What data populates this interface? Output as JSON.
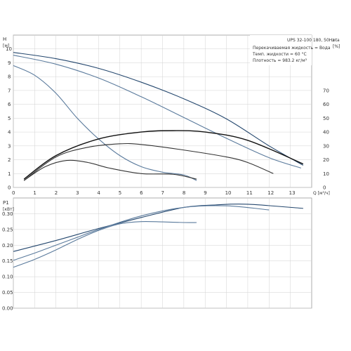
{
  "header": {
    "model": "UPS 32-100  180, 50Hz",
    "eta_label": "eta",
    "eta_unit": "[%]",
    "h_label": "H",
    "h_unit": "[м]",
    "p_label": "P1",
    "p_unit": "[кВт]",
    "q_label": "Q [м³/ч]"
  },
  "info": {
    "line1": "Перекачиваемая жидкость = Вода",
    "line2": "Темп. жидкости = 60 °C",
    "line3": "Плотность = 983.2 кг/м³"
  },
  "chart_data": [
    {
      "type": "line",
      "xlabel": "Q [м³/ч]",
      "ylabel": "H [м]",
      "ylabel_right": "eta [%]",
      "xlim": [
        0,
        14
      ],
      "ylim": [
        0,
        11
      ],
      "ylim_right": [
        0,
        110
      ],
      "x_ticks": [
        0,
        1,
        2,
        3,
        4,
        5,
        6,
        7,
        8,
        9,
        10,
        11,
        12,
        13
      ],
      "y_ticks": [
        0,
        1,
        2,
        3,
        4,
        5,
        6,
        7,
        8,
        9,
        10
      ],
      "y_ticks_right": [
        0,
        10,
        20,
        30,
        40,
        50,
        60,
        70
      ],
      "grid": true,
      "series": [
        {
          "axis": "H",
          "color": "#24476e",
          "x": [
            0,
            2,
            4,
            6,
            8,
            10,
            12,
            13.6
          ],
          "y": [
            9.75,
            9.3,
            8.6,
            7.6,
            6.4,
            4.95,
            3.0,
            1.6
          ]
        },
        {
          "axis": "H",
          "color": "#5a7a9c",
          "x": [
            0,
            2,
            4,
            6,
            8,
            10,
            12,
            13.5
          ],
          "y": [
            9.55,
            8.9,
            7.9,
            6.55,
            5.05,
            3.55,
            2.15,
            1.4
          ]
        },
        {
          "axis": "H",
          "color": "#5a7a9c",
          "x": [
            0,
            1,
            2,
            3,
            4,
            5,
            6,
            7,
            8,
            8.6
          ],
          "y": [
            8.8,
            8.1,
            6.8,
            5.0,
            3.5,
            2.3,
            1.5,
            1.1,
            0.9,
            0.5
          ]
        },
        {
          "axis": "eta",
          "color": "#111111",
          "x": [
            0.5,
            2,
            4,
            6,
            7.5,
            9,
            11,
            13.6
          ],
          "y": [
            6,
            23,
            35,
            40,
            41,
            40,
            34,
            17
          ]
        },
        {
          "axis": "eta",
          "color": "#333333",
          "x": [
            0.5,
            2,
            3.5,
            5,
            6,
            8,
            10,
            11,
            12.2
          ],
          "y": [
            5,
            22,
            29,
            31.5,
            31,
            27,
            22,
            18,
            10
          ]
        },
        {
          "axis": "eta",
          "color": "#333333",
          "x": [
            0.5,
            1.5,
            2.5,
            3.5,
            4.5,
            6,
            7.5,
            8.6
          ],
          "y": [
            5,
            15,
            19.5,
            18,
            14,
            10,
            9.5,
            6
          ]
        }
      ]
    },
    {
      "type": "line",
      "ylabel": "P1 [кВт]",
      "xlim": [
        0,
        14
      ],
      "ylim": [
        0,
        0.35
      ],
      "y_ticks": [
        0,
        0.05,
        0.1,
        0.15,
        0.2,
        0.25,
        0.3
      ],
      "grid": true,
      "series": [
        {
          "color": "#24476e",
          "x": [
            0,
            2,
            4,
            6,
            8,
            9.5,
            11,
            13.6
          ],
          "y": [
            0.18,
            0.215,
            0.253,
            0.288,
            0.32,
            0.328,
            0.33,
            0.317
          ]
        },
        {
          "color": "#5a7a9c",
          "x": [
            0,
            1,
            2,
            3,
            4,
            6,
            8,
            10,
            12
          ],
          "y": [
            0.152,
            0.175,
            0.2,
            0.225,
            0.25,
            0.293,
            0.32,
            0.325,
            0.312
          ]
        },
        {
          "color": "#5a7a9c",
          "x": [
            0,
            1,
            2,
            3,
            4,
            5,
            6,
            7,
            8,
            8.6
          ],
          "y": [
            0.13,
            0.155,
            0.185,
            0.218,
            0.247,
            0.268,
            0.275,
            0.274,
            0.272,
            0.272
          ]
        }
      ]
    }
  ]
}
